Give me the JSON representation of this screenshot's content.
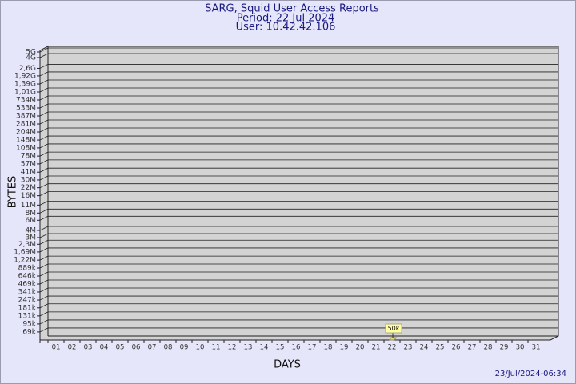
{
  "chart_data": {
    "type": "bar",
    "title": "SARG, Squid User Access Reports",
    "subtitle": "Period: 22 Jul 2024",
    "user": "User: 10.42.42.106",
    "x_label": "DAYS",
    "y_label": "BYTES",
    "footer": "23/Jul/2024-06:34",
    "log_scale": true,
    "grid": true,
    "color": "#f0e060",
    "categories": [
      "01",
      "02",
      "03",
      "04",
      "05",
      "06",
      "07",
      "08",
      "09",
      "10",
      "11",
      "12",
      "13",
      "14",
      "15",
      "16",
      "17",
      "18",
      "19",
      "20",
      "21",
      "22",
      "23",
      "24",
      "25",
      "26",
      "27",
      "28",
      "29",
      "30",
      "31"
    ],
    "values": [
      null,
      null,
      null,
      null,
      null,
      null,
      null,
      null,
      null,
      null,
      null,
      null,
      null,
      null,
      null,
      null,
      null,
      null,
      null,
      null,
      null,
      50000,
      null,
      null,
      null,
      null,
      null,
      null,
      null,
      null,
      null
    ],
    "value_labels": [
      null,
      null,
      null,
      null,
      null,
      null,
      null,
      null,
      null,
      null,
      null,
      null,
      null,
      null,
      null,
      null,
      null,
      null,
      null,
      null,
      null,
      "50k",
      null,
      null,
      null,
      null,
      null,
      null,
      null,
      null,
      null
    ],
    "ylim": [
      50000,
      5000000000
    ],
    "yticks": [
      {
        "value": 69000,
        "label": "69k"
      },
      {
        "value": 95000,
        "label": "95k"
      },
      {
        "value": 131000,
        "label": "131k"
      },
      {
        "value": 181000,
        "label": "181k"
      },
      {
        "value": 247000,
        "label": "247k"
      },
      {
        "value": 341000,
        "label": "341k"
      },
      {
        "value": 469000,
        "label": "469k"
      },
      {
        "value": 646000,
        "label": "646k"
      },
      {
        "value": 889000,
        "label": "889k"
      },
      {
        "value": 1220000,
        "label": "1,22M"
      },
      {
        "value": 1690000,
        "label": "1,69M"
      },
      {
        "value": 2300000,
        "label": "2,3M"
      },
      {
        "value": 3000000,
        "label": "3M"
      },
      {
        "value": 4000000,
        "label": "4M"
      },
      {
        "value": 6000000,
        "label": "6M"
      },
      {
        "value": 8000000,
        "label": "8M"
      },
      {
        "value": 11000000,
        "label": "11M"
      },
      {
        "value": 16000000,
        "label": "16M"
      },
      {
        "value": 22000000,
        "label": "22M"
      },
      {
        "value": 30000000,
        "label": "30M"
      },
      {
        "value": 41000000,
        "label": "41M"
      },
      {
        "value": 57000000,
        "label": "57M"
      },
      {
        "value": 78000000,
        "label": "78M"
      },
      {
        "value": 108000000,
        "label": "108M"
      },
      {
        "value": 148000000,
        "label": "148M"
      },
      {
        "value": 204000000,
        "label": "204M"
      },
      {
        "value": 281000000,
        "label": "281M"
      },
      {
        "value": 387000000,
        "label": "387M"
      },
      {
        "value": 533000000,
        "label": "533M"
      },
      {
        "value": 734000000,
        "label": "734M"
      },
      {
        "value": 1010000000,
        "label": "1,01G"
      },
      {
        "value": 1390000000,
        "label": "1,39G"
      },
      {
        "value": 1920000000,
        "label": "1,92G"
      },
      {
        "value": 2600000000,
        "label": "2,6G"
      },
      {
        "value": 4000000000,
        "label": "4G"
      },
      {
        "value": 5000000000,
        "label": "5G"
      }
    ]
  }
}
